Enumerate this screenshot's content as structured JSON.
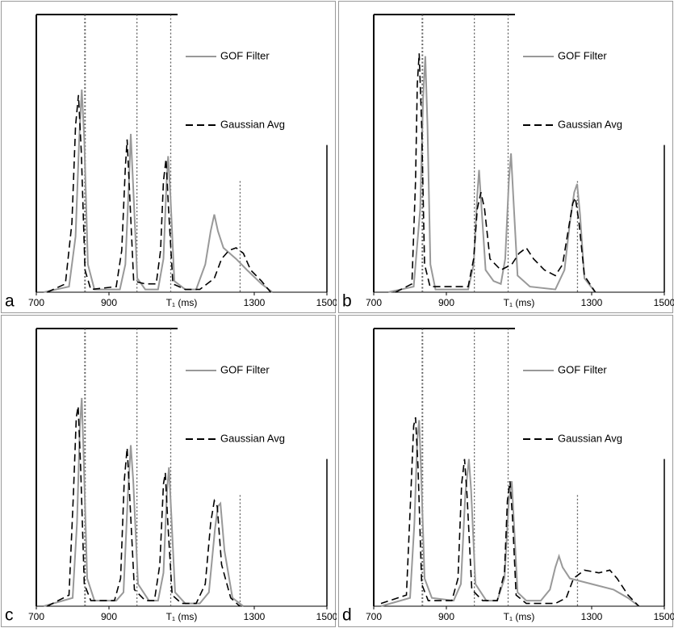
{
  "chart_data": [
    {
      "type": "line",
      "panel_label": "a",
      "xlabel": "T₁ (ms)",
      "xlim": [
        700,
        1500
      ],
      "xticks": [
        700,
        900,
        1300,
        1500
      ],
      "ylim": [
        0,
        100
      ],
      "legend": "upper right",
      "reference_lines": [
        834,
        977,
        1070,
        1261
      ],
      "series": [
        {
          "name": "GOF Filter",
          "color": "#999999",
          "style": "solid",
          "x": [
            720,
            790,
            808,
            818,
            825,
            832,
            842,
            860,
            930,
            945,
            955,
            960,
            966,
            978,
            1000,
            1035,
            1050,
            1058,
            1063,
            1069,
            1080,
            1110,
            1140,
            1165,
            1180,
            1190,
            1200,
            1215,
            1250,
            1280,
            1320,
            1350
          ],
          "values": [
            0,
            2,
            20,
            55,
            73,
            55,
            10,
            1,
            1,
            10,
            40,
            57,
            40,
            5,
            1,
            1,
            12,
            38,
            49,
            35,
            4,
            1,
            1,
            10,
            22,
            28,
            22,
            16,
            12,
            8,
            3,
            0
          ]
        },
        {
          "name": "Gaussian Avg",
          "color": "#000000",
          "style": "dashed",
          "x": [
            730,
            780,
            798,
            808,
            816,
            824,
            834,
            850,
            920,
            935,
            945,
            950,
            956,
            968,
            1000,
            1030,
            1042,
            1050,
            1057,
            1064,
            1076,
            1110,
            1150,
            1190,
            1210,
            1230,
            1250,
            1270,
            1290,
            1320,
            1345
          ],
          "values": [
            0,
            3,
            25,
            60,
            71,
            50,
            8,
            1,
            2,
            15,
            45,
            55,
            38,
            4,
            3,
            3,
            15,
            40,
            48,
            30,
            3,
            1,
            1,
            5,
            12,
            15,
            16,
            14,
            8,
            4,
            0
          ]
        }
      ]
    },
    {
      "type": "line",
      "panel_label": "b",
      "xlabel": "T₁ (ms)",
      "xlim": [
        700,
        1500
      ],
      "xticks": [
        700,
        900,
        1300,
        1500
      ],
      "ylim": [
        0,
        100
      ],
      "legend": "upper right",
      "reference_lines": [
        834,
        977,
        1070,
        1261
      ],
      "series": [
        {
          "name": "GOF Filter",
          "color": "#999999",
          "style": "solid",
          "x": [
            740,
            810,
            828,
            836,
            842,
            848,
            856,
            870,
            960,
            975,
            985,
            990,
            996,
            1008,
            1030,
            1050,
            1062,
            1072,
            1078,
            1084,
            1096,
            1130,
            1200,
            1225,
            1240,
            1252,
            1260,
            1268,
            1280,
            1310
          ],
          "values": [
            0,
            2,
            30,
            70,
            85,
            60,
            10,
            1,
            1,
            10,
            35,
            44,
            32,
            8,
            4,
            3,
            12,
            40,
            50,
            35,
            6,
            2,
            1,
            8,
            25,
            36,
            39,
            28,
            5,
            0
          ]
        },
        {
          "name": "Gaussian Avg",
          "color": "#000000",
          "style": "dashed",
          "x": [
            760,
            805,
            815,
            820,
            825,
            832,
            840,
            855,
            960,
            975,
            985,
            995,
            1005,
            1020,
            1050,
            1080,
            1100,
            1120,
            1140,
            1170,
            1200,
            1220,
            1235,
            1248,
            1255,
            1265,
            1280,
            1310
          ],
          "values": [
            0,
            3,
            40,
            75,
            86,
            60,
            10,
            2,
            2,
            12,
            30,
            36,
            30,
            12,
            8,
            10,
            14,
            16,
            12,
            8,
            6,
            10,
            22,
            32,
            34,
            25,
            6,
            0
          ]
        }
      ]
    },
    {
      "type": "line",
      "panel_label": "c",
      "xlabel": "T₁ (ms)",
      "xlim": [
        700,
        1500
      ],
      "xticks": [
        700,
        900,
        1300,
        1500
      ],
      "ylim": [
        0,
        100
      ],
      "legend": "upper right",
      "reference_lines": [
        834,
        977,
        1070,
        1261
      ],
      "series": [
        {
          "name": "GOF Filter",
          "color": "#999999",
          "style": "solid",
          "x": [
            720,
            800,
            812,
            820,
            825,
            830,
            840,
            860,
            920,
            940,
            952,
            960,
            967,
            980,
            1010,
            1035,
            1050,
            1060,
            1065,
            1071,
            1082,
            1110,
            1150,
            1175,
            1192,
            1200,
            1207,
            1218,
            1240,
            1270
          ],
          "values": [
            0,
            3,
            30,
            65,
            75,
            55,
            10,
            2,
            2,
            5,
            40,
            58,
            45,
            8,
            2,
            2,
            12,
            42,
            50,
            35,
            5,
            1,
            1,
            5,
            28,
            36,
            37,
            20,
            3,
            0
          ]
        },
        {
          "name": "Gaussian Avg",
          "color": "#000000",
          "style": "dashed",
          "x": [
            730,
            790,
            802,
            810,
            815,
            822,
            832,
            850,
            915,
            932,
            942,
            950,
            957,
            970,
            1000,
            1025,
            1040,
            1050,
            1055,
            1062,
            1074,
            1100,
            1140,
            1165,
            1180,
            1190,
            1198,
            1210,
            1235,
            1260
          ],
          "values": [
            0,
            4,
            40,
            68,
            72,
            50,
            8,
            2,
            2,
            10,
            45,
            57,
            40,
            6,
            2,
            2,
            15,
            44,
            48,
            30,
            4,
            1,
            1,
            8,
            30,
            38,
            36,
            15,
            3,
            0
          ]
        }
      ]
    },
    {
      "type": "line",
      "panel_label": "d",
      "xlabel": "T₁ (ms)",
      "xlim": [
        700,
        1500
      ],
      "xticks": [
        700,
        900,
        1300,
        1500
      ],
      "ylim": [
        0,
        100
      ],
      "legend": "upper right",
      "reference_lines": [
        834,
        977,
        1070,
        1261
      ],
      "series": [
        {
          "name": "GOF Filter",
          "color": "#999999",
          "style": "solid",
          "x": [
            720,
            800,
            812,
            820,
            825,
            830,
            840,
            860,
            920,
            940,
            952,
            962,
            968,
            980,
            1010,
            1040,
            1060,
            1072,
            1080,
            1086,
            1096,
            1120,
            1160,
            1185,
            1200,
            1210,
            1220,
            1240,
            1300,
            1360,
            1400,
            1430
          ],
          "values": [
            0,
            3,
            30,
            60,
            67,
            50,
            10,
            3,
            2,
            8,
            40,
            53,
            42,
            8,
            2,
            2,
            10,
            38,
            45,
            30,
            5,
            2,
            2,
            6,
            14,
            18,
            14,
            10,
            8,
            6,
            3,
            0
          ]
        },
        {
          "name": "Gaussian Avg",
          "color": "#000000",
          "style": "dashed",
          "x": [
            720,
            790,
            802,
            810,
            815,
            822,
            832,
            850,
            915,
            932,
            942,
            950,
            957,
            970,
            1000,
            1040,
            1060,
            1068,
            1075,
            1082,
            1092,
            1120,
            1200,
            1230,
            1250,
            1280,
            1320,
            1350,
            1370,
            1400,
            1430
          ],
          "values": [
            1,
            4,
            40,
            65,
            68,
            50,
            8,
            2,
            2,
            10,
            44,
            53,
            40,
            6,
            2,
            2,
            12,
            38,
            45,
            32,
            4,
            1,
            1,
            3,
            10,
            13,
            12,
            13,
            10,
            4,
            0
          ]
        }
      ]
    }
  ]
}
